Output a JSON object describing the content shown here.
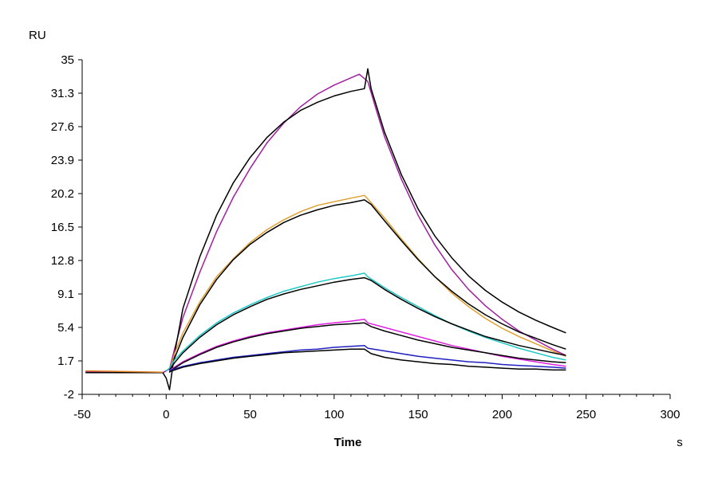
{
  "chart_data": {
    "type": "line",
    "title": "",
    "xlabel": "Time",
    "x_unit": "s",
    "ylabel": "RU",
    "xlim": [
      -50,
      300
    ],
    "ylim": [
      -2,
      35
    ],
    "x_ticks": [
      "-50",
      "0",
      "50",
      "100",
      "150",
      "200",
      "250",
      "300"
    ],
    "y_ticks": [
      "-2",
      "1.7",
      "5.4",
      "9.1",
      "12.8",
      "16.5",
      "20.2",
      "23.9",
      "27.6",
      "31.3",
      "35"
    ],
    "grid": false,
    "legend": "none",
    "series": [
      {
        "color": "#a020a0",
        "kind": "measured",
        "points": [
          [
            -48,
            0.5
          ],
          [
            -2,
            0.4
          ],
          [
            2,
            0.8
          ],
          [
            5,
            3.0
          ],
          [
            10,
            6.5
          ],
          [
            20,
            11.5
          ],
          [
            30,
            16.0
          ],
          [
            40,
            19.8
          ],
          [
            50,
            23.0
          ],
          [
            60,
            25.8
          ],
          [
            70,
            28.0
          ],
          [
            80,
            29.8
          ],
          [
            90,
            31.2
          ],
          [
            100,
            32.2
          ],
          [
            110,
            33.0
          ],
          [
            115,
            33.4
          ],
          [
            120,
            32.6
          ],
          [
            125,
            29.5
          ],
          [
            130,
            26.5
          ],
          [
            140,
            21.8
          ],
          [
            150,
            17.8
          ],
          [
            160,
            14.5
          ],
          [
            170,
            11.8
          ],
          [
            180,
            9.6
          ],
          [
            190,
            7.8
          ],
          [
            200,
            6.3
          ],
          [
            210,
            5.0
          ],
          [
            220,
            4.0
          ],
          [
            230,
            3.0
          ],
          [
            238,
            2.3
          ]
        ]
      },
      {
        "color": "#000000",
        "kind": "fit",
        "points": [
          [
            -48,
            0.4
          ],
          [
            -2,
            0.4
          ],
          [
            0,
            -0.2
          ],
          [
            2,
            -1.5
          ],
          [
            5,
            2.5
          ],
          [
            10,
            7.5
          ],
          [
            20,
            13.2
          ],
          [
            30,
            17.8
          ],
          [
            40,
            21.4
          ],
          [
            50,
            24.2
          ],
          [
            60,
            26.4
          ],
          [
            70,
            28.1
          ],
          [
            80,
            29.4
          ],
          [
            90,
            30.3
          ],
          [
            100,
            31.0
          ],
          [
            110,
            31.5
          ],
          [
            118,
            31.8
          ],
          [
            120,
            34.0
          ],
          [
            122,
            31.8
          ],
          [
            130,
            27.0
          ],
          [
            140,
            22.3
          ],
          [
            150,
            18.5
          ],
          [
            160,
            15.5
          ],
          [
            170,
            13.1
          ],
          [
            180,
            11.1
          ],
          [
            190,
            9.5
          ],
          [
            200,
            8.2
          ],
          [
            210,
            7.1
          ],
          [
            220,
            6.2
          ],
          [
            230,
            5.4
          ],
          [
            238,
            4.8
          ]
        ]
      },
      {
        "color": "#e0a030",
        "kind": "measured",
        "points": [
          [
            2,
            0.6
          ],
          [
            5,
            2.5
          ],
          [
            10,
            4.8
          ],
          [
            20,
            8.2
          ],
          [
            30,
            11.0
          ],
          [
            40,
            13.0
          ],
          [
            50,
            14.8
          ],
          [
            60,
            16.2
          ],
          [
            70,
            17.3
          ],
          [
            80,
            18.2
          ],
          [
            90,
            18.9
          ],
          [
            100,
            19.3
          ],
          [
            110,
            19.7
          ],
          [
            118,
            20.0
          ],
          [
            120,
            19.6
          ],
          [
            130,
            17.5
          ],
          [
            140,
            15.2
          ],
          [
            150,
            13.0
          ],
          [
            160,
            11.0
          ],
          [
            170,
            9.2
          ],
          [
            180,
            7.7
          ],
          [
            190,
            6.4
          ],
          [
            200,
            5.3
          ],
          [
            210,
            4.4
          ],
          [
            220,
            3.6
          ],
          [
            230,
            2.8
          ],
          [
            238,
            2.2
          ]
        ]
      },
      {
        "color": "#000000",
        "kind": "fit",
        "points": [
          [
            2,
            0.4
          ],
          [
            5,
            2.0
          ],
          [
            10,
            4.3
          ],
          [
            20,
            7.9
          ],
          [
            30,
            10.7
          ],
          [
            40,
            12.9
          ],
          [
            50,
            14.6
          ],
          [
            60,
            15.9
          ],
          [
            70,
            17.0
          ],
          [
            80,
            17.8
          ],
          [
            90,
            18.4
          ],
          [
            100,
            18.9
          ],
          [
            110,
            19.2
          ],
          [
            118,
            19.5
          ],
          [
            122,
            19.0
          ],
          [
            130,
            17.2
          ],
          [
            140,
            15.0
          ],
          [
            150,
            12.9
          ],
          [
            160,
            11.0
          ],
          [
            170,
            9.4
          ],
          [
            180,
            8.0
          ],
          [
            190,
            6.8
          ],
          [
            200,
            5.8
          ],
          [
            210,
            4.9
          ],
          [
            220,
            4.2
          ],
          [
            230,
            3.5
          ],
          [
            238,
            3.0
          ]
        ]
      },
      {
        "color": "#20c8c8",
        "kind": "measured",
        "points": [
          [
            0,
            0.6
          ],
          [
            2,
            0.9
          ],
          [
            5,
            1.8
          ],
          [
            10,
            2.8
          ],
          [
            20,
            4.5
          ],
          [
            30,
            5.9
          ],
          [
            40,
            7.0
          ],
          [
            50,
            7.9
          ],
          [
            60,
            8.7
          ],
          [
            70,
            9.4
          ],
          [
            80,
            9.9
          ],
          [
            90,
            10.4
          ],
          [
            100,
            10.8
          ],
          [
            110,
            11.1
          ],
          [
            118,
            11.4
          ],
          [
            120,
            11.0
          ],
          [
            130,
            9.8
          ],
          [
            140,
            8.7
          ],
          [
            150,
            7.7
          ],
          [
            160,
            6.7
          ],
          [
            170,
            5.8
          ],
          [
            180,
            5.0
          ],
          [
            190,
            4.3
          ],
          [
            200,
            3.7
          ],
          [
            210,
            3.1
          ],
          [
            220,
            2.6
          ],
          [
            230,
            2.1
          ],
          [
            238,
            1.8
          ]
        ]
      },
      {
        "color": "#000000",
        "kind": "fit",
        "points": [
          [
            2,
            0.7
          ],
          [
            5,
            1.5
          ],
          [
            10,
            2.6
          ],
          [
            20,
            4.3
          ],
          [
            30,
            5.7
          ],
          [
            40,
            6.8
          ],
          [
            50,
            7.7
          ],
          [
            60,
            8.5
          ],
          [
            70,
            9.1
          ],
          [
            80,
            9.6
          ],
          [
            90,
            10.0
          ],
          [
            100,
            10.4
          ],
          [
            110,
            10.7
          ],
          [
            118,
            10.9
          ],
          [
            122,
            10.6
          ],
          [
            130,
            9.6
          ],
          [
            140,
            8.5
          ],
          [
            150,
            7.5
          ],
          [
            160,
            6.6
          ],
          [
            170,
            5.8
          ],
          [
            180,
            5.1
          ],
          [
            190,
            4.4
          ],
          [
            200,
            3.9
          ],
          [
            210,
            3.4
          ],
          [
            220,
            3.0
          ],
          [
            230,
            2.6
          ],
          [
            238,
            2.3
          ]
        ]
      },
      {
        "color": "#e020e0",
        "kind": "measured",
        "points": [
          [
            2,
            0.6
          ],
          [
            5,
            1.0
          ],
          [
            10,
            1.6
          ],
          [
            20,
            2.5
          ],
          [
            30,
            3.3
          ],
          [
            40,
            3.9
          ],
          [
            50,
            4.4
          ],
          [
            60,
            4.8
          ],
          [
            70,
            5.1
          ],
          [
            80,
            5.4
          ],
          [
            90,
            5.7
          ],
          [
            100,
            5.9
          ],
          [
            110,
            6.1
          ],
          [
            118,
            6.3
          ],
          [
            120,
            5.9
          ],
          [
            130,
            5.4
          ],
          [
            140,
            4.9
          ],
          [
            150,
            4.4
          ],
          [
            160,
            3.9
          ],
          [
            170,
            3.4
          ],
          [
            180,
            3.0
          ],
          [
            190,
            2.6
          ],
          [
            200,
            2.2
          ],
          [
            210,
            1.9
          ],
          [
            220,
            1.6
          ],
          [
            230,
            1.3
          ],
          [
            238,
            1.1
          ]
        ]
      },
      {
        "color": "#000000",
        "kind": "fit",
        "points": [
          [
            2,
            0.5
          ],
          [
            5,
            0.9
          ],
          [
            10,
            1.5
          ],
          [
            20,
            2.4
          ],
          [
            30,
            3.2
          ],
          [
            40,
            3.8
          ],
          [
            50,
            4.3
          ],
          [
            60,
            4.7
          ],
          [
            70,
            5.0
          ],
          [
            80,
            5.3
          ],
          [
            90,
            5.5
          ],
          [
            100,
            5.7
          ],
          [
            110,
            5.8
          ],
          [
            118,
            5.9
          ],
          [
            122,
            5.5
          ],
          [
            130,
            5.0
          ],
          [
            140,
            4.5
          ],
          [
            150,
            4.0
          ],
          [
            160,
            3.6
          ],
          [
            170,
            3.2
          ],
          [
            180,
            2.9
          ],
          [
            190,
            2.6
          ],
          [
            200,
            2.3
          ],
          [
            210,
            2.0
          ],
          [
            220,
            1.8
          ],
          [
            230,
            1.6
          ],
          [
            238,
            1.5
          ]
        ]
      },
      {
        "color": "#2020c0",
        "kind": "measured",
        "points": [
          [
            2,
            0.6
          ],
          [
            5,
            0.8
          ],
          [
            10,
            1.1
          ],
          [
            20,
            1.5
          ],
          [
            30,
            1.8
          ],
          [
            40,
            2.1
          ],
          [
            50,
            2.3
          ],
          [
            60,
            2.5
          ],
          [
            70,
            2.7
          ],
          [
            80,
            2.9
          ],
          [
            90,
            3.0
          ],
          [
            100,
            3.2
          ],
          [
            110,
            3.3
          ],
          [
            118,
            3.4
          ],
          [
            120,
            3.1
          ],
          [
            130,
            2.8
          ],
          [
            140,
            2.5
          ],
          [
            150,
            2.2
          ],
          [
            160,
            2.0
          ],
          [
            170,
            1.8
          ],
          [
            180,
            1.6
          ],
          [
            190,
            1.5
          ],
          [
            200,
            1.3
          ],
          [
            210,
            1.2
          ],
          [
            220,
            1.1
          ],
          [
            230,
            1.0
          ],
          [
            238,
            0.9
          ]
        ]
      },
      {
        "color": "#000000",
        "kind": "fit",
        "points": [
          [
            2,
            0.5
          ],
          [
            5,
            0.7
          ],
          [
            10,
            1.0
          ],
          [
            20,
            1.4
          ],
          [
            30,
            1.7
          ],
          [
            40,
            2.0
          ],
          [
            50,
            2.2
          ],
          [
            60,
            2.4
          ],
          [
            70,
            2.6
          ],
          [
            80,
            2.7
          ],
          [
            90,
            2.8
          ],
          [
            100,
            2.9
          ],
          [
            110,
            3.0
          ],
          [
            118,
            3.0
          ],
          [
            122,
            2.5
          ],
          [
            130,
            2.1
          ],
          [
            140,
            1.8
          ],
          [
            150,
            1.6
          ],
          [
            160,
            1.4
          ],
          [
            170,
            1.3
          ],
          [
            180,
            1.1
          ],
          [
            190,
            1.0
          ],
          [
            200,
            0.9
          ],
          [
            210,
            0.8
          ],
          [
            220,
            0.8
          ],
          [
            230,
            0.7
          ],
          [
            238,
            0.7
          ]
        ]
      },
      {
        "color": "#e08020",
        "kind": "measured",
        "points": [
          [
            -48,
            0.6
          ],
          [
            -30,
            0.55
          ],
          [
            -2,
            0.45
          ]
        ]
      }
    ]
  }
}
